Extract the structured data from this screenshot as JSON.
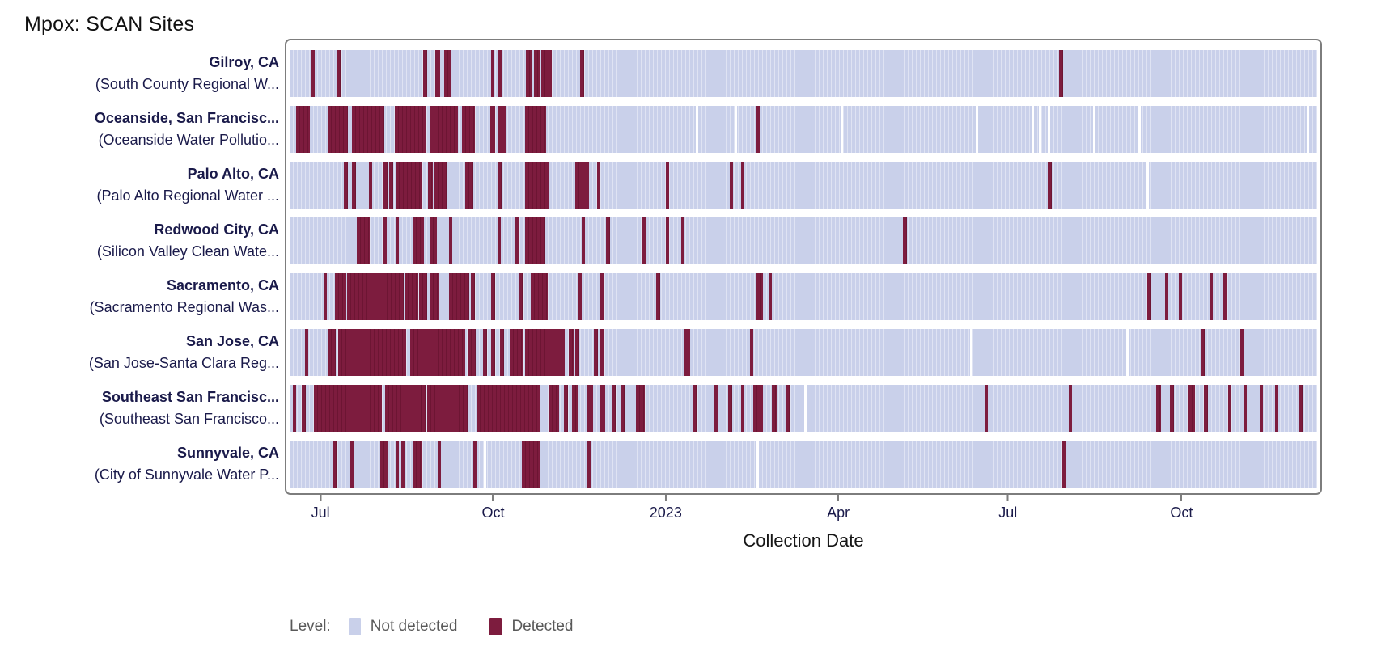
{
  "title": "Mpox: SCAN Sites",
  "chart_data": {
    "type": "heatmap",
    "title": "Mpox: SCAN Sites",
    "xlabel": "Collection Date",
    "x_axis": {
      "description": "time axis, daily wastewater samples from mid 2022 to late 2023; tick positions given as percent across plot width",
      "ticks": [
        {
          "label": "Jul",
          "pct": 3.0
        },
        {
          "label": "Oct",
          "pct": 19.8
        },
        {
          "label": "2023",
          "pct": 36.6
        },
        {
          "label": "Apr",
          "pct": 53.4
        },
        {
          "label": "Jul",
          "pct": 69.9
        },
        {
          "label": "Oct",
          "pct": 86.8
        }
      ]
    },
    "legend": {
      "label": "Level:",
      "items": [
        {
          "name": "Not detected",
          "color": "#c9d0ea"
        },
        {
          "name": "Detected",
          "color": "#7d1c3e"
        }
      ]
    },
    "colors": {
      "not_detected": "#c9d0ea",
      "not_detected_stripe": "#dfe3f3",
      "detected": "#7d1c3e",
      "site_label": "#1a1a4a",
      "panel_border": "#7d7d7d",
      "legend_text": "#595959"
    },
    "sites": [
      {
        "name": "Gilroy, CA",
        "facility": "(South County Regional W...",
        "detected": [
          [
            2.1,
            0.35
          ],
          [
            4.6,
            0.35
          ],
          [
            13.0,
            0.35
          ],
          [
            14.2,
            0.45
          ],
          [
            15.0,
            0.65
          ],
          [
            19.6,
            0.35
          ],
          [
            20.3,
            0.35
          ],
          [
            23.0,
            0.6
          ],
          [
            23.8,
            0.5
          ],
          [
            24.5,
            1.0
          ],
          [
            28.3,
            0.35
          ],
          [
            74.9,
            0.35
          ]
        ],
        "missing": []
      },
      {
        "name": "Oceanside, San Francisc...",
        "facility": "(Oceanside Water Pollutio...",
        "detected": [
          [
            0.6,
            1.4
          ],
          [
            3.7,
            2.0
          ],
          [
            6.1,
            3.1
          ],
          [
            10.2,
            3.1
          ],
          [
            13.7,
            2.7
          ],
          [
            16.8,
            1.2
          ],
          [
            19.5,
            0.5
          ],
          [
            20.3,
            0.7
          ],
          [
            22.9,
            2.1
          ],
          [
            45.4,
            0.3
          ]
        ],
        "missing": [
          39.5,
          43.3,
          53.6,
          66.8,
          72.2,
          72.9,
          73.8,
          78.2,
          82.6,
          99.0
        ]
      },
      {
        "name": "Palo Alto, CA",
        "facility": "(Palo Alto Regional Water ...",
        "detected": [
          [
            5.3,
            0.35
          ],
          [
            6.1,
            0.35
          ],
          [
            7.7,
            0.35
          ],
          [
            9.1,
            0.4
          ],
          [
            9.7,
            0.4
          ],
          [
            10.3,
            2.6
          ],
          [
            13.5,
            0.4
          ],
          [
            14.1,
            1.2
          ],
          [
            17.1,
            0.8
          ],
          [
            20.2,
            0.4
          ],
          [
            22.9,
            2.3
          ],
          [
            27.8,
            1.3
          ],
          [
            29.9,
            0.35
          ],
          [
            36.6,
            0.35
          ],
          [
            42.8,
            0.35
          ],
          [
            43.9,
            0.35
          ],
          [
            73.8,
            0.35
          ]
        ],
        "missing": [
          83.4
        ]
      },
      {
        "name": "Redwood City, CA",
        "facility": "(Silicon Valley Clean Wate...",
        "detected": [
          [
            6.5,
            1.3
          ],
          [
            9.1,
            0.35
          ],
          [
            10.3,
            0.35
          ],
          [
            12.0,
            1.1
          ],
          [
            13.6,
            0.7
          ],
          [
            15.5,
            0.35
          ],
          [
            20.2,
            0.35
          ],
          [
            22.0,
            0.35
          ],
          [
            22.9,
            2.0
          ],
          [
            28.4,
            0.35
          ],
          [
            30.8,
            0.35
          ],
          [
            34.3,
            0.35
          ],
          [
            36.6,
            0.35
          ],
          [
            38.1,
            0.35
          ],
          [
            59.7,
            0.35
          ]
        ],
        "missing": []
      },
      {
        "name": "Sacramento, CA",
        "facility": "(Sacramento Regional Was...",
        "detected": [
          [
            3.3,
            0.35
          ],
          [
            4.4,
            1.1
          ],
          [
            5.6,
            5.5
          ],
          [
            11.2,
            1.3
          ],
          [
            12.6,
            0.8
          ],
          [
            13.6,
            1.0
          ],
          [
            15.5,
            2.0
          ],
          [
            17.6,
            0.4
          ],
          [
            19.6,
            0.4
          ],
          [
            22.3,
            0.4
          ],
          [
            23.5,
            1.6
          ],
          [
            28.1,
            0.35
          ],
          [
            30.2,
            0.35
          ],
          [
            35.7,
            0.35
          ],
          [
            45.4,
            0.7
          ],
          [
            46.6,
            0.35
          ],
          [
            83.5,
            0.35
          ],
          [
            85.2,
            0.35
          ],
          [
            86.5,
            0.35
          ],
          [
            89.5,
            0.35
          ],
          [
            90.9,
            0.35
          ]
        ],
        "missing": []
      },
      {
        "name": "San Jose, CA",
        "facility": "(San Jose-Santa Clara Reg...",
        "detected": [
          [
            1.5,
            0.35
          ],
          [
            3.7,
            0.8
          ],
          [
            4.7,
            6.6
          ],
          [
            11.7,
            5.4
          ],
          [
            17.3,
            0.8
          ],
          [
            18.8,
            0.4
          ],
          [
            19.6,
            0.4
          ],
          [
            20.5,
            0.4
          ],
          [
            21.4,
            1.3
          ],
          [
            22.9,
            3.9
          ],
          [
            27.2,
            0.4
          ],
          [
            27.8,
            0.4
          ],
          [
            29.6,
            0.4
          ],
          [
            30.2,
            0.4
          ],
          [
            38.4,
            0.6
          ],
          [
            44.8,
            0.35
          ],
          [
            88.7,
            0.35
          ],
          [
            92.5,
            0.35
          ]
        ],
        "missing": [
          66.2,
          81.4
        ]
      },
      {
        "name": "Southeast San Francisc...",
        "facility": "(Southeast San Francisco...",
        "detected": [
          [
            0.3,
            0.35
          ],
          [
            1.2,
            0.4
          ],
          [
            2.4,
            6.6
          ],
          [
            9.3,
            3.9
          ],
          [
            13.4,
            3.9
          ],
          [
            18.2,
            6.1
          ],
          [
            25.2,
            1.0
          ],
          [
            26.7,
            0.4
          ],
          [
            27.5,
            0.6
          ],
          [
            29.0,
            0.5
          ],
          [
            30.2,
            0.5
          ],
          [
            31.3,
            0.4
          ],
          [
            32.2,
            0.5
          ],
          [
            33.7,
            0.9
          ],
          [
            39.2,
            0.4
          ],
          [
            41.3,
            0.35
          ],
          [
            42.7,
            0.35
          ],
          [
            43.9,
            0.35
          ],
          [
            45.1,
            1.0
          ],
          [
            46.9,
            0.6
          ],
          [
            48.3,
            0.35
          ],
          [
            67.6,
            0.35
          ],
          [
            75.8,
            0.35
          ],
          [
            84.3,
            0.5
          ],
          [
            85.7,
            0.35
          ],
          [
            87.5,
            0.6
          ],
          [
            89.0,
            0.35
          ],
          [
            91.3,
            0.35
          ],
          [
            92.8,
            0.35
          ],
          [
            94.4,
            0.35
          ],
          [
            95.9,
            0.35
          ],
          [
            98.2,
            0.35
          ]
        ],
        "missing": [
          50.1
        ]
      },
      {
        "name": "Sunnyvale, CA",
        "facility": "(City of Sunnyvale Water P...",
        "detected": [
          [
            4.2,
            0.35
          ],
          [
            5.9,
            0.35
          ],
          [
            8.8,
            0.7
          ],
          [
            10.3,
            0.35
          ],
          [
            10.9,
            0.35
          ],
          [
            12.0,
            0.8
          ],
          [
            14.4,
            0.35
          ],
          [
            17.9,
            0.35
          ],
          [
            22.6,
            1.7
          ],
          [
            29.0,
            0.35
          ],
          [
            75.2,
            0.35
          ]
        ],
        "missing": [
          18.9,
          45.4
        ]
      }
    ]
  }
}
